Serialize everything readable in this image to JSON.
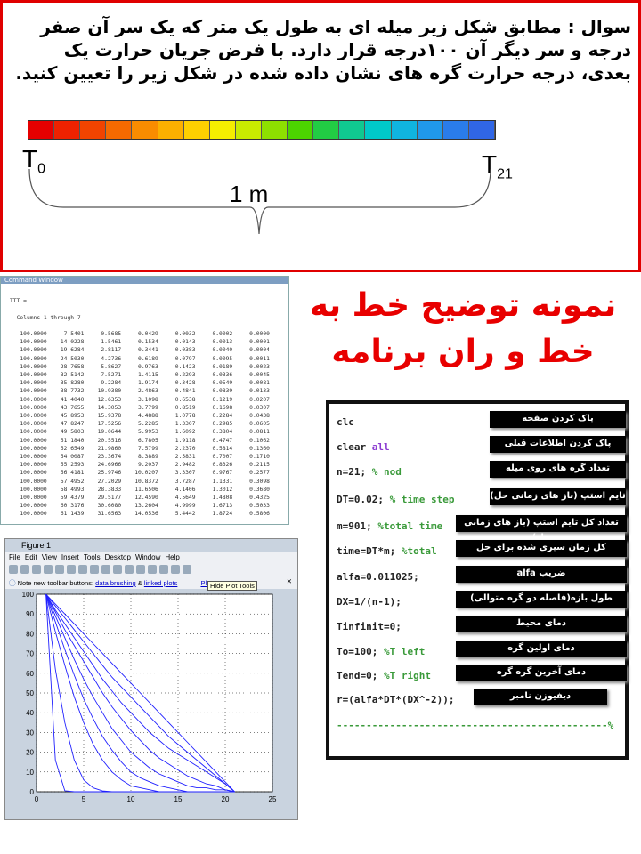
{
  "question": {
    "text": "سوال : مطابق شکل زیر میله ای به طول یک  متر که یک سر آن صفر درجه  و سر دیگر آن ۱۰۰درجه قرار دارد. با فرض جریان حرارت یک بعدی، درجه حرارت گره های نشان داده شده در شکل زیر را تعیین کنید.",
    "left_label": "T",
    "left_sub": "0",
    "right_label": "T",
    "right_sub": "21",
    "length": "1 m",
    "bar_colors": [
      "#e60000",
      "#ee2200",
      "#f24400",
      "#f66a00",
      "#f98c00",
      "#fbb000",
      "#fdd000",
      "#f5ee00",
      "#c8ec00",
      "#8ee000",
      "#4cd400",
      "#22cc44",
      "#10c890",
      "#00c8c8",
      "#10b4e0",
      "#2098ea",
      "#2a7cea",
      "#3066e6"
    ]
  },
  "command_window": {
    "title": "Command Window",
    "var": "TTT =",
    "columns": "Columns 1 through 7",
    "rows": [
      [
        "100.0000",
        "7.5401",
        "0.5685",
        "0.0429",
        "0.0032",
        "0.0002",
        "0.0000"
      ],
      [
        "100.0000",
        "14.0228",
        "1.5461",
        "0.1534",
        "0.0143",
        "0.0013",
        "0.0001"
      ],
      [
        "100.0000",
        "19.6284",
        "2.8117",
        "0.3441",
        "0.0383",
        "0.0040",
        "0.0004"
      ],
      [
        "100.0000",
        "24.5030",
        "4.2736",
        "0.6189",
        "0.0797",
        "0.0095",
        "0.0011"
      ],
      [
        "100.0000",
        "28.7658",
        "5.8627",
        "0.9763",
        "0.1423",
        "0.0189",
        "0.0023"
      ],
      [
        "100.0000",
        "32.5142",
        "7.5271",
        "1.4115",
        "0.2293",
        "0.0336",
        "0.0045"
      ],
      [
        "100.0000",
        "35.8280",
        "9.2284",
        "1.9174",
        "0.3428",
        "0.0549",
        "0.0081"
      ],
      [
        "100.0000",
        "38.7732",
        "10.9380",
        "2.4863",
        "0.4841",
        "0.0839",
        "0.0133"
      ],
      [
        "100.0000",
        "41.4040",
        "12.6353",
        "3.1098",
        "0.6538",
        "0.1219",
        "0.0207"
      ],
      [
        "100.0000",
        "43.7655",
        "14.3053",
        "3.7799",
        "0.8519",
        "0.1698",
        "0.0307"
      ],
      [
        "100.0000",
        "45.8953",
        "15.9378",
        "4.4888",
        "1.0778",
        "0.2284",
        "0.0438"
      ],
      [
        "100.0000",
        "47.8247",
        "17.5256",
        "5.2285",
        "1.3307",
        "0.2985",
        "0.0605"
      ],
      [
        "100.0000",
        "49.5803",
        "19.0644",
        "5.9953",
        "1.6092",
        "0.3804",
        "0.0811"
      ],
      [
        "100.0000",
        "51.1840",
        "20.5516",
        "6.7805",
        "1.9118",
        "0.4747",
        "0.1062"
      ],
      [
        "100.0000",
        "52.6549",
        "21.9860",
        "7.5799",
        "2.2370",
        "0.5814",
        "0.1360"
      ],
      [
        "100.0000",
        "54.0087",
        "23.3674",
        "8.3889",
        "2.5831",
        "0.7007",
        "0.1710"
      ],
      [
        "100.0000",
        "55.2593",
        "24.6966",
        "9.2037",
        "2.9482",
        "0.8326",
        "0.2115"
      ],
      [
        "100.0000",
        "56.4181",
        "25.9746",
        "10.0207",
        "3.3307",
        "0.9767",
        "0.2577"
      ],
      [
        "100.0000",
        "57.4952",
        "27.2029",
        "10.8372",
        "3.7287",
        "1.1331",
        "0.3098"
      ],
      [
        "100.0000",
        "58.4993",
        "28.3833",
        "11.6506",
        "4.1406",
        "1.3012",
        "0.3680"
      ],
      [
        "100.0000",
        "59.4379",
        "29.5177",
        "12.4590",
        "4.5649",
        "1.4808",
        "0.4325"
      ],
      [
        "100.0000",
        "60.3176",
        "30.6080",
        "13.2604",
        "4.9999",
        "1.6713",
        "0.5033"
      ],
      [
        "100.0000",
        "61.1439",
        "31.6563",
        "14.0536",
        "5.4442",
        "1.8724",
        "0.5806"
      ]
    ]
  },
  "figure": {
    "title": "Figure 1",
    "menu": [
      "File",
      "Edit",
      "View",
      "Insert",
      "Tools",
      "Desktop",
      "Window",
      "Help"
    ],
    "note_prefix": "Note new toolbar buttons:",
    "link1": "data brushing",
    "amp": "&",
    "link2": "linked plots",
    "tooltip": "Hide Plot Tools",
    "plo": "Plo"
  },
  "chart_data": {
    "type": "line",
    "xlim": [
      0,
      25
    ],
    "ylim": [
      0,
      100
    ],
    "grid": true,
    "xticks": [
      "0",
      "5",
      "10",
      "15",
      "20",
      "25"
    ],
    "yticks": [
      "0",
      "10",
      "20",
      "30",
      "40",
      "50",
      "60",
      "70",
      "80",
      "90",
      "100"
    ],
    "x": [
      1,
      2,
      3,
      4,
      5,
      6,
      7,
      8,
      9,
      10,
      11,
      12,
      13,
      14,
      15,
      16,
      17,
      18,
      19,
      20,
      21
    ],
    "color": "#2020ff",
    "series": [
      {
        "values": [
          100,
          16,
          0.5,
          0,
          0,
          0,
          0,
          0,
          0,
          0,
          0,
          0,
          0,
          0,
          0,
          0,
          0,
          0,
          0,
          0,
          0
        ]
      },
      {
        "values": [
          100,
          62,
          35,
          16,
          6,
          2,
          0.4,
          0,
          0,
          0,
          0,
          0,
          0,
          0,
          0,
          0,
          0,
          0,
          0,
          0,
          0
        ]
      },
      {
        "values": [
          100,
          81,
          64,
          48,
          35,
          24,
          16,
          10,
          6,
          3,
          2,
          1,
          0,
          0,
          0,
          0,
          0,
          0,
          0,
          0,
          0
        ]
      },
      {
        "values": [
          100,
          86,
          72,
          59,
          47,
          37,
          28,
          21,
          15,
          10,
          7,
          5,
          3,
          2,
          1,
          0,
          0,
          0,
          0,
          0,
          0
        ]
      },
      {
        "values": [
          100,
          89,
          78,
          67,
          57,
          48,
          40,
          32,
          26,
          20,
          16,
          12,
          9,
          7,
          5,
          3,
          2,
          2,
          1,
          1,
          0
        ]
      },
      {
        "values": [
          100,
          91,
          82,
          74,
          66,
          58,
          50,
          43,
          37,
          31,
          26,
          21,
          17,
          14,
          11,
          8,
          6,
          4,
          3,
          1,
          0
        ]
      },
      {
        "values": [
          100,
          92,
          85,
          78,
          71,
          64,
          57,
          51,
          45,
          40,
          35,
          30,
          26,
          22,
          19,
          16,
          13,
          10,
          7,
          4,
          0
        ]
      },
      {
        "values": [
          100,
          94,
          88,
          82,
          76,
          70,
          64,
          58,
          53,
          48,
          43,
          38,
          33,
          28,
          24,
          20,
          16,
          12,
          8,
          4,
          0
        ]
      },
      {
        "values": [
          100,
          95,
          90,
          85,
          80,
          75,
          70,
          65,
          60,
          55,
          50,
          45,
          40,
          35,
          30,
          25,
          20,
          15,
          10,
          5,
          0
        ]
      }
    ]
  },
  "heading": {
    "line1": "نمونه توضیح خط به",
    "line2": "خط  و ران برنامه"
  },
  "code": {
    "lines": [
      {
        "code": "clc",
        "kw": "",
        "comment": "",
        "label": "پاک کردن صفحه"
      },
      {
        "code": "clear ",
        "kw": "all",
        "comment": "",
        "label": "پاک کردن اطلاعات قبلی"
      },
      {
        "code": "n=21; ",
        "kw": "",
        "comment": "% nod",
        "label": "تعداد گره های روی میله"
      },
      {
        "code": "DT=0.02; ",
        "kw": "",
        "comment": "% time step",
        "label": "تایم استپ (باز های زمانی حل)"
      },
      {
        "code": "m=901; ",
        "kw": "",
        "comment": "%total time",
        "label": "تعداد کل تایم استپ (باز های زمانی حل)"
      },
      {
        "code": "time=DT*m; ",
        "kw": "",
        "comment": "%total",
        "label": "کل زمان سپری شده برای حل"
      },
      {
        "code": "alfa=0.011025;",
        "kw": "",
        "comment": "",
        "label": "ضریب alfa"
      },
      {
        "code": "DX=1/(n-1);",
        "kw": "",
        "comment": "",
        "label": "طول بازه(فاصله دو گره متوالی)"
      },
      {
        "code": "Tinfinit=0;",
        "kw": "",
        "comment": "",
        "label": "دمای محیط"
      },
      {
        "code": "To=100; ",
        "kw": "",
        "comment": "%T left",
        "label": "دمای اولین گره"
      },
      {
        "code": "Tend=0;  ",
        "kw": "",
        "comment": "%T right",
        "label": "دمای آخرین گره گره"
      },
      {
        "code": "r=(alfa*DT*(DX^-2));",
        "kw": "",
        "comment": "",
        "label": "دیفیوزن نامبر"
      }
    ],
    "divider": "----------------------------------------------%"
  }
}
